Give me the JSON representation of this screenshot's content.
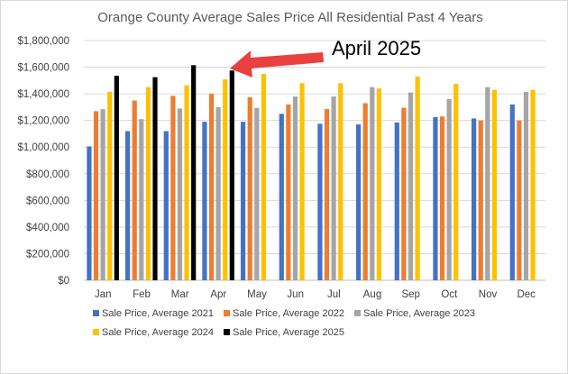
{
  "chart_data": {
    "type": "bar",
    "title": "Orange County Average Sales Price All Residential Past 4 Years",
    "categories": [
      "Jan",
      "Feb",
      "Mar",
      "Apr",
      "May",
      "Jun",
      "Jul",
      "Aug",
      "Sep",
      "Oct",
      "Nov",
      "Dec"
    ],
    "y_ticks": [
      "$0",
      "$200,000",
      "$400,000",
      "$600,000",
      "$800,000",
      "$1,000,000",
      "$1,200,000",
      "$1,400,000",
      "$1,600,000",
      "$1,800,000"
    ],
    "ylim": [
      0,
      1800000
    ],
    "grid": true,
    "legend_position": "bottom",
    "series": [
      {
        "name": "Sale Price, Average 2021",
        "color": "#4472c4",
        "values": [
          1005000,
          1120000,
          1120000,
          1190000,
          1190000,
          1250000,
          1175000,
          1170000,
          1185000,
          1225000,
          1215000,
          1320000
        ]
      },
      {
        "name": "Sale Price, Average 2022",
        "color": "#ed7d31",
        "values": [
          1270000,
          1350000,
          1385000,
          1400000,
          1375000,
          1320000,
          1285000,
          1330000,
          1295000,
          1230000,
          1200000,
          1200000
        ]
      },
      {
        "name": "Sale Price, Average 2023",
        "color": "#a5a5a5",
        "values": [
          1285000,
          1210000,
          1290000,
          1300000,
          1295000,
          1380000,
          1380000,
          1450000,
          1410000,
          1360000,
          1450000,
          1415000
        ]
      },
      {
        "name": "Sale Price, Average 2024",
        "color": "#ffc000",
        "values": [
          1415000,
          1450000,
          1465000,
          1510000,
          1550000,
          1480000,
          1480000,
          1440000,
          1530000,
          1475000,
          1430000,
          1430000
        ]
      },
      {
        "name": "Sale Price, Average 2025",
        "color": "#000000",
        "values": [
          1535000,
          1525000,
          1615000,
          1575000,
          null,
          null,
          null,
          null,
          null,
          null,
          null,
          null
        ]
      }
    ],
    "annotation": {
      "text": "April 2025",
      "arrow_color": "#e8413f",
      "points_to": "Apr"
    }
  }
}
